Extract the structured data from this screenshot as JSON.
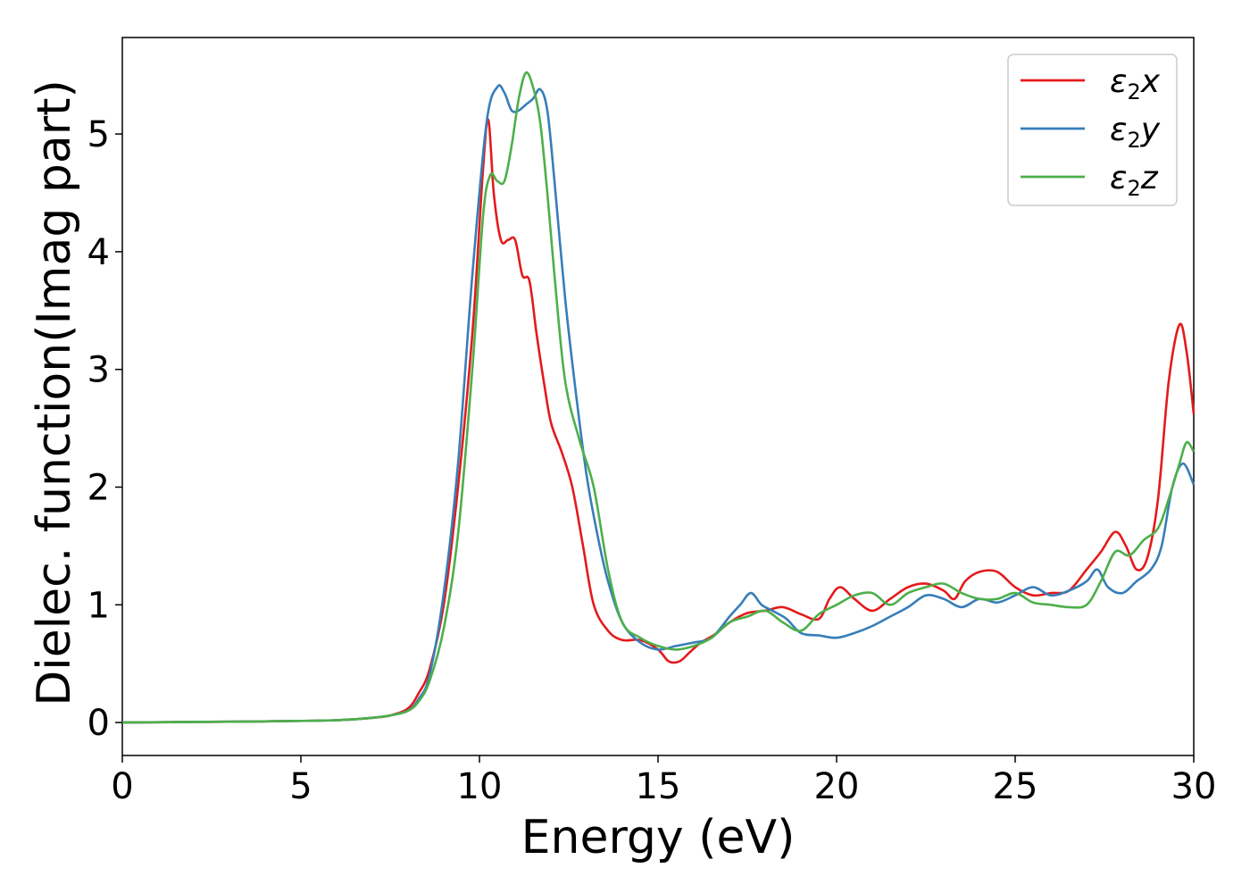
{
  "chart_data": {
    "type": "line",
    "title": "",
    "xlabel": "Energy (eV)",
    "ylabel": "Dielec. function(Imag part)",
    "xlim": [
      0,
      30
    ],
    "ylim": [
      -0.28,
      5.82
    ],
    "xticks": [
      "0",
      "5",
      "10",
      "15",
      "20",
      "25",
      "30"
    ],
    "yticks": [
      "0",
      "1",
      "2",
      "3",
      "4",
      "5"
    ],
    "grid": false,
    "legend_position": "top-right",
    "series": [
      {
        "name": "ε2x",
        "legend_main": "ε",
        "legend_sub": "2",
        "legend_tail": "x",
        "color": "#e41a1c",
        "x": [
          0,
          2,
          4,
          6,
          7,
          7.5,
          8,
          8.3,
          8.6,
          9,
          9.4,
          9.8,
          10.1,
          10.25,
          10.4,
          10.6,
          10.8,
          11.0,
          11.2,
          11.4,
          11.6,
          11.8,
          12.0,
          12.3,
          12.6,
          12.9,
          13.2,
          13.6,
          14.0,
          14.5,
          15.0,
          15.3,
          15.6,
          15.9,
          16.2,
          16.6,
          17.0,
          17.5,
          18.0,
          18.5,
          19.0,
          19.5,
          19.8,
          20.1,
          20.5,
          21.0,
          21.5,
          22.0,
          22.5,
          23.0,
          23.3,
          23.6,
          24.0,
          24.5,
          25.0,
          25.5,
          26.0,
          26.5,
          27.0,
          27.4,
          27.8,
          28.1,
          28.4,
          28.7,
          29.0,
          29.3,
          29.6,
          29.8,
          30.0
        ],
        "y": [
          0,
          0.005,
          0.01,
          0.02,
          0.04,
          0.06,
          0.12,
          0.25,
          0.45,
          1.0,
          2.0,
          3.3,
          4.7,
          5.12,
          4.5,
          4.1,
          4.1,
          4.1,
          3.8,
          3.75,
          3.3,
          2.9,
          2.55,
          2.3,
          2.0,
          1.5,
          1.0,
          0.78,
          0.7,
          0.7,
          0.62,
          0.52,
          0.52,
          0.6,
          0.68,
          0.75,
          0.85,
          0.93,
          0.95,
          0.98,
          0.92,
          0.88,
          1.05,
          1.15,
          1.05,
          0.95,
          1.05,
          1.15,
          1.18,
          1.12,
          1.05,
          1.2,
          1.28,
          1.28,
          1.15,
          1.08,
          1.1,
          1.12,
          1.3,
          1.45,
          1.62,
          1.5,
          1.3,
          1.4,
          1.9,
          2.9,
          3.38,
          3.15,
          2.62
        ]
      },
      {
        "name": "ε2y",
        "legend_main": "ε",
        "legend_sub": "2",
        "legend_tail": "y",
        "color": "#377eb8",
        "x": [
          0,
          2,
          4,
          6,
          7,
          7.5,
          8,
          8.3,
          8.6,
          9,
          9.4,
          9.8,
          10.2,
          10.5,
          10.7,
          10.9,
          11.1,
          11.3,
          11.5,
          11.7,
          11.9,
          12.1,
          12.4,
          12.7,
          13.0,
          13.3,
          13.6,
          14.0,
          14.5,
          15.0,
          15.5,
          16.0,
          16.5,
          17.0,
          17.3,
          17.6,
          17.9,
          18.2,
          18.6,
          19.0,
          19.5,
          20.0,
          20.5,
          21.0,
          21.5,
          22.0,
          22.5,
          23.0,
          23.5,
          24.0,
          24.5,
          25.0,
          25.5,
          26.0,
          26.5,
          27.0,
          27.3,
          27.6,
          28.0,
          28.4,
          28.8,
          29.1,
          29.4,
          29.7,
          30.0
        ],
        "y": [
          0,
          0.005,
          0.01,
          0.02,
          0.04,
          0.06,
          0.1,
          0.2,
          0.4,
          1.1,
          2.2,
          3.8,
          5.1,
          5.4,
          5.35,
          5.2,
          5.2,
          5.25,
          5.3,
          5.38,
          5.2,
          4.6,
          3.6,
          2.8,
          2.1,
          1.6,
          1.2,
          0.85,
          0.68,
          0.62,
          0.65,
          0.68,
          0.72,
          0.9,
          1.0,
          1.1,
          1.0,
          0.95,
          0.88,
          0.76,
          0.74,
          0.72,
          0.76,
          0.82,
          0.9,
          0.98,
          1.08,
          1.05,
          0.98,
          1.05,
          1.02,
          1.08,
          1.15,
          1.08,
          1.12,
          1.2,
          1.3,
          1.15,
          1.1,
          1.2,
          1.3,
          1.5,
          2.0,
          2.2,
          2.02
        ]
      },
      {
        "name": "ε2z",
        "legend_main": "ε",
        "legend_sub": "2",
        "legend_tail": "z",
        "color": "#4daf4a",
        "x": [
          0,
          2,
          4,
          6,
          7,
          7.5,
          8,
          8.3,
          8.6,
          9,
          9.4,
          9.8,
          10.1,
          10.3,
          10.5,
          10.7,
          10.9,
          11.1,
          11.3,
          11.5,
          11.7,
          11.9,
          12.1,
          12.4,
          12.8,
          13.2,
          13.6,
          14.0,
          14.5,
          15.0,
          15.5,
          16.0,
          16.5,
          17.0,
          17.5,
          18.0,
          18.5,
          19.0,
          19.5,
          20.0,
          20.5,
          21.0,
          21.5,
          22.0,
          22.5,
          23.0,
          23.5,
          24.0,
          24.5,
          25.0,
          25.5,
          26.0,
          26.5,
          27.0,
          27.4,
          27.8,
          28.2,
          28.6,
          29.0,
          29.3,
          29.6,
          29.8,
          30.0
        ],
        "y": [
          0,
          0.005,
          0.01,
          0.02,
          0.04,
          0.06,
          0.1,
          0.18,
          0.35,
          0.8,
          1.6,
          3.0,
          4.3,
          4.65,
          4.6,
          4.6,
          4.9,
          5.3,
          5.52,
          5.4,
          5.1,
          4.5,
          3.8,
          2.9,
          2.4,
          2.0,
          1.3,
          0.85,
          0.72,
          0.65,
          0.62,
          0.65,
          0.72,
          0.85,
          0.9,
          0.95,
          0.85,
          0.78,
          0.92,
          1.0,
          1.08,
          1.1,
          1.0,
          1.1,
          1.15,
          1.18,
          1.1,
          1.05,
          1.05,
          1.1,
          1.02,
          1.0,
          0.98,
          1.0,
          1.2,
          1.45,
          1.42,
          1.55,
          1.65,
          1.9,
          2.2,
          2.38,
          2.3
        ]
      }
    ]
  }
}
